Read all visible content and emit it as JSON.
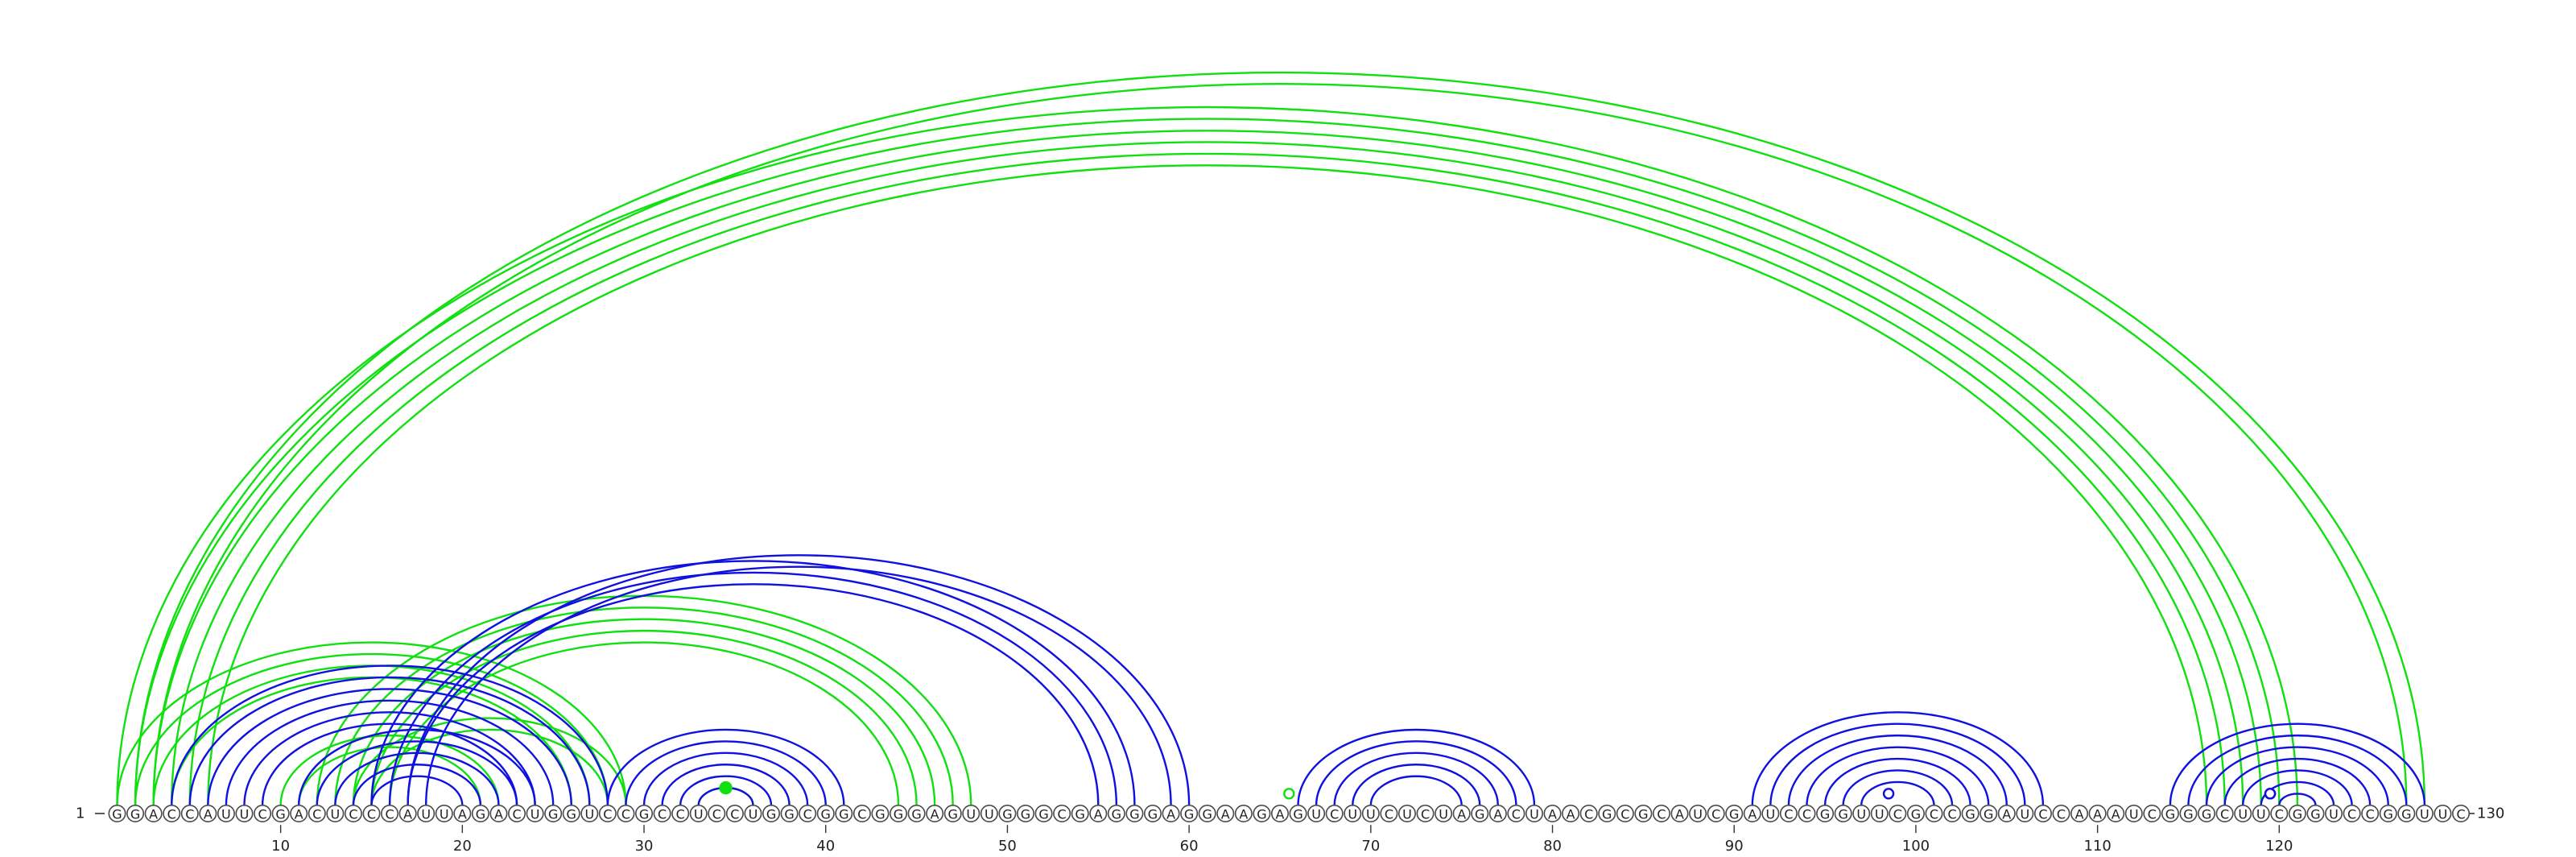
{
  "sequence": "GGACCAUUCGACUCCCAUUAGACUGGUCCGCCUCCUGGCGGCGGGAGUUGGGCGAGGGAGGAAGAGUCUUCUCUAGACUAACGCGCAUCGAUCCGGUUCGCCGGAUCCAAAUCGGGCUUCGGUCCGGUUC",
  "start_label": "1",
  "end_label": "130",
  "ticks": [
    10,
    20,
    30,
    40,
    50,
    60,
    70,
    80,
    90,
    100,
    110,
    120
  ],
  "colors": {
    "structure_a": "#1010e0",
    "structure_b": "#10e010"
  },
  "structure_a": {
    "color_name": "blue",
    "helices": [
      {
        "i": 4,
        "j": 28,
        "len": 6
      },
      {
        "i": 11,
        "j": 24,
        "len": 5
      },
      {
        "i": 15,
        "j": 57,
        "len": 3
      },
      {
        "i": 17,
        "j": 60,
        "len": 2
      },
      {
        "i": 28,
        "j": 41,
        "len": 6
      },
      {
        "i": 66,
        "j": 79,
        "len": 5
      },
      {
        "i": 91,
        "j": 107,
        "len": 7
      },
      {
        "i": 114,
        "j": 128,
        "len": 7
      }
    ],
    "markers": [
      {
        "pos": 98.5,
        "level": 1
      },
      {
        "pos": 119.5,
        "level": 1
      },
      {
        "pos": 119.5,
        "level": 3
      },
      {
        "pos": 119.5,
        "level": 5
      }
    ]
  },
  "structure_b": {
    "color_name": "green",
    "helices": [
      {
        "i": 1,
        "j": 121,
        "len": 6
      },
      {
        "i": 2,
        "j": 128,
        "len": 2
      },
      {
        "i": 1,
        "j": 29,
        "len": 4
      },
      {
        "i": 12,
        "j": 48,
        "len": 5
      },
      {
        "i": 14,
        "j": 29,
        "len": 2
      },
      {
        "i": 10,
        "j": 22,
        "len": 2
      },
      {
        "i": 33,
        "j": 36,
        "len": 1
      }
    ],
    "markers": [
      {
        "pos": 65.5,
        "level": 4,
        "filled": false
      },
      {
        "pos": 34.5,
        "level": 1,
        "filled": true
      }
    ]
  }
}
